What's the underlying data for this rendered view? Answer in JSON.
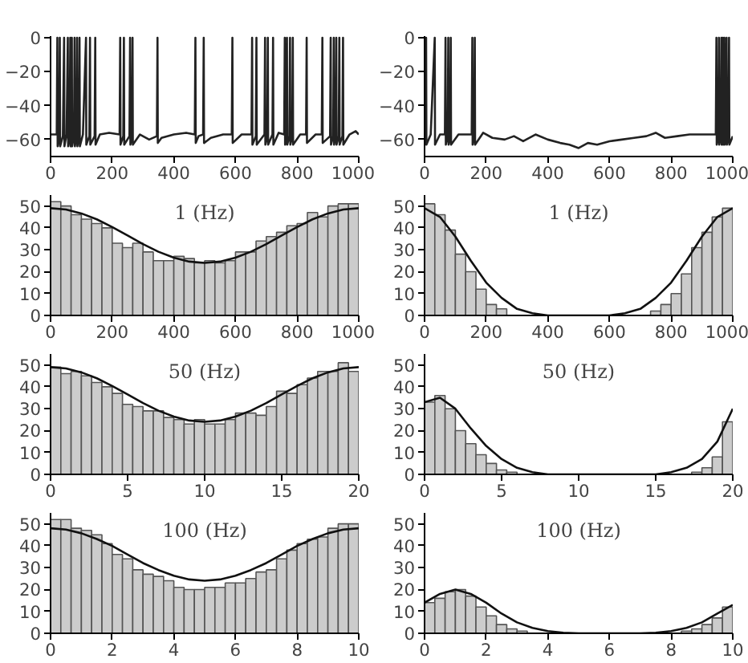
{
  "chart_data": [
    {
      "type": "line",
      "color": "#222222",
      "xlim": [
        0,
        1000
      ],
      "ylim": [
        -70,
        1
      ],
      "xticks": [
        0,
        200,
        400,
        600,
        800,
        1000
      ],
      "yticks": [
        0,
        -20,
        -40,
        -60
      ],
      "x": [
        0,
        20,
        22,
        23,
        28,
        30,
        31,
        40,
        44,
        45,
        52,
        56,
        57,
        62,
        64,
        65,
        67,
        69,
        70,
        76,
        78,
        79,
        84,
        86,
        87,
        92,
        94,
        95,
        105,
        115,
        116,
        126,
        128,
        129,
        143,
        145,
        146,
        160,
        190,
        224,
        226,
        227,
        236,
        238,
        239,
        256,
        258,
        259,
        264,
        266,
        267,
        290,
        320,
        345,
        347,
        348,
        360,
        400,
        440,
        468,
        470,
        471,
        480,
        495,
        497,
        498,
        520,
        560,
        588,
        590,
        591,
        620,
        652,
        654,
        655,
        666,
        668,
        669,
        694,
        696,
        697,
        703,
        705,
        706,
        720,
        722,
        723,
        740,
        758,
        760,
        761,
        765,
        767,
        768,
        775,
        777,
        778,
        784,
        786,
        787,
        810,
        829,
        831,
        832,
        860,
        880,
        882,
        883,
        907,
        909,
        910,
        917,
        919,
        920,
        925,
        927,
        928,
        935,
        937,
        938,
        947,
        949,
        950,
        970,
        990,
        1000
      ],
      "values": [
        -57,
        -57,
        0,
        -64,
        -58,
        0,
        -64,
        -58,
        0,
        -64,
        -57,
        0,
        -64,
        -58,
        0,
        -64,
        -58,
        0,
        -64,
        -58,
        0,
        -64,
        -58,
        0,
        -64,
        -58,
        0,
        -64,
        -57,
        0,
        -63,
        -58,
        0,
        -63,
        -58,
        0,
        -63,
        -57,
        -56,
        -57,
        0,
        -63,
        -58,
        0,
        -63,
        -58,
        0,
        -63,
        -58,
        0,
        -63,
        -57,
        -60,
        -58,
        0,
        -62,
        -59,
        -57,
        -56,
        -57,
        0,
        -62,
        -58,
        -57,
        0,
        -62,
        -59,
        -57,
        -57,
        0,
        -62,
        -57,
        -57,
        0,
        -63,
        -58,
        0,
        -63,
        -57,
        0,
        -63,
        -58,
        0,
        -63,
        -57,
        0,
        -63,
        -56,
        -57,
        0,
        -63,
        -58,
        0,
        -63,
        -58,
        0,
        -63,
        -58,
        0,
        -63,
        -57,
        -57,
        0,
        -62,
        -57,
        -57,
        0,
        -62,
        -58,
        0,
        -63,
        -58,
        0,
        -63,
        -58,
        0,
        -63,
        -58,
        0,
        -63,
        -58,
        0,
        -63,
        -57,
        -55,
        -57
      ]
    },
    {
      "type": "line",
      "color": "#222222",
      "xlim": [
        0,
        1000
      ],
      "ylim": [
        -70,
        1
      ],
      "xticks": [
        0,
        200,
        400,
        600,
        800,
        1000
      ],
      "yticks": [
        0,
        -20,
        -40,
        -60
      ],
      "x": [
        0,
        1,
        3,
        5,
        6,
        20,
        33,
        34,
        50,
        66,
        68,
        69,
        75,
        77,
        78,
        83,
        85,
        86,
        110,
        153,
        155,
        156,
        161,
        163,
        164,
        190,
        220,
        260,
        290,
        320,
        360,
        400,
        440,
        470,
        500,
        530,
        560,
        600,
        640,
        680,
        720,
        750,
        780,
        820,
        860,
        900,
        945,
        947,
        948,
        953,
        955,
        956,
        961,
        963,
        964,
        966,
        968,
        969,
        971,
        973,
        974,
        978,
        980,
        981,
        986,
        988,
        989,
        1000
      ],
      "values": [
        0,
        -63,
        -58,
        0,
        -63,
        -57,
        0,
        -63,
        -57,
        -57,
        0,
        -63,
        -58,
        0,
        -63,
        -58,
        0,
        -63,
        -57,
        -57,
        0,
        -63,
        -58,
        0,
        -63,
        -56,
        -59,
        -60,
        -58,
        -61,
        -57,
        -60,
        -62,
        -63,
        -65,
        -62,
        -63,
        -61,
        -60,
        -59,
        -58,
        -56,
        -59,
        -58,
        -57,
        -57,
        -57,
        0,
        -63,
        -58,
        0,
        -63,
        -58,
        0,
        -63,
        -58,
        0,
        -63,
        -58,
        0,
        -63,
        -58,
        0,
        -63,
        -58,
        0,
        -63,
        -58
      ]
    },
    {
      "type": "histogram",
      "annotations": [
        "1 (Hz)"
      ],
      "xlim": [
        0,
        1000
      ],
      "ylim": [
        0,
        55
      ],
      "xticks": [
        0,
        200,
        400,
        600,
        800,
        1000
      ],
      "yticks": [
        0,
        10,
        20,
        30,
        40,
        50
      ],
      "series": [
        {
          "type": "histogram",
          "color": "#cccccc",
          "bins": [
            0,
            33.3,
            66.7,
            100,
            133.3,
            166.7,
            200,
            233.3,
            266.7,
            300,
            333.3,
            366.7,
            400,
            433.3,
            466.7,
            500,
            533.3,
            566.7,
            600,
            633.3,
            666.7,
            700,
            733.3,
            766.7,
            800,
            833.3,
            866.7,
            900,
            933.3,
            966.7,
            1000
          ],
          "values": [
            52,
            50,
            46,
            44,
            42,
            40,
            33,
            31,
            33,
            29,
            25,
            25,
            27,
            26,
            24,
            25,
            24,
            25,
            29,
            29,
            34,
            36,
            38,
            41,
            42,
            47,
            45,
            50,
            51,
            51
          ]
        },
        {
          "type": "line",
          "color": "#111111",
          "x": [
            0,
            50,
            100,
            150,
            200,
            250,
            300,
            350,
            400,
            450,
            500,
            550,
            600,
            650,
            700,
            750,
            800,
            850,
            900,
            950,
            1000
          ],
          "values": [
            49,
            48.4,
            46.6,
            43.9,
            40.4,
            36.5,
            32.6,
            29.1,
            26.4,
            24.6,
            24,
            24.6,
            26.4,
            29.1,
            32.6,
            36.5,
            40.4,
            43.9,
            46.6,
            48.4,
            49
          ]
        }
      ]
    },
    {
      "type": "histogram",
      "annotations": [
        "1 (Hz)"
      ],
      "xlim": [
        0,
        1000
      ],
      "ylim": [
        0,
        55
      ],
      "xticks": [
        0,
        200,
        400,
        600,
        800,
        1000
      ],
      "yticks": [
        0,
        10,
        20,
        30,
        40,
        50
      ],
      "series": [
        {
          "type": "histogram",
          "color": "#cccccc",
          "bins": [
            0,
            33.3,
            66.7,
            100,
            133.3,
            166.7,
            200,
            233.3,
            266.7,
            300,
            333.3,
            366.7,
            400,
            433.3,
            466.7,
            500,
            533.3,
            566.7,
            600,
            633.3,
            666.7,
            700,
            733.3,
            766.7,
            800,
            833.3,
            866.7,
            900,
            933.3,
            966.7,
            1000
          ],
          "values": [
            51,
            46,
            39,
            28,
            20,
            12,
            5,
            3,
            0,
            0,
            0,
            0,
            0,
            0,
            0,
            0,
            0,
            0,
            0,
            0,
            0,
            0,
            2,
            5,
            10,
            19,
            31,
            38,
            45,
            49
          ]
        },
        {
          "type": "line",
          "color": "#111111",
          "x": [
            0,
            50,
            100,
            150,
            200,
            250,
            300,
            350,
            400,
            450,
            500,
            550,
            600,
            650,
            700,
            750,
            800,
            850,
            900,
            950,
            1000
          ],
          "values": [
            49,
            45,
            36,
            25,
            15,
            8,
            3,
            1,
            0,
            0,
            0,
            0,
            0,
            1,
            3,
            8,
            15,
            25,
            36,
            45,
            49
          ]
        }
      ]
    },
    {
      "type": "histogram",
      "annotations": [
        "50 (Hz)"
      ],
      "xlim": [
        0,
        20
      ],
      "ylim": [
        0,
        55
      ],
      "xticks": [
        0,
        5,
        10,
        15,
        20
      ],
      "yticks": [
        0,
        10,
        20,
        30,
        40,
        50
      ],
      "series": [
        {
          "type": "histogram",
          "color": "#cccccc",
          "bins": [
            0,
            0.667,
            1.333,
            2,
            2.667,
            3.333,
            4,
            4.667,
            5.333,
            6,
            6.667,
            7.333,
            8,
            8.667,
            9.333,
            10,
            10.667,
            11.333,
            12,
            12.667,
            13.333,
            14,
            14.667,
            15.333,
            16,
            16.667,
            17.333,
            18,
            18.667,
            19.333,
            20
          ],
          "values": [
            49,
            46,
            47,
            45,
            42,
            40,
            37,
            32,
            31,
            29,
            29,
            26,
            25,
            23,
            25,
            23,
            23,
            25,
            28,
            28,
            27,
            31,
            38,
            37,
            41,
            44,
            47,
            47,
            51,
            47
          ]
        },
        {
          "type": "line",
          "color": "#111111",
          "x": [
            0,
            1,
            2,
            3,
            4,
            5,
            6,
            7,
            8,
            9,
            10,
            11,
            12,
            13,
            14,
            15,
            16,
            17,
            18,
            19,
            20
          ],
          "values": [
            49,
            48.4,
            46.6,
            43.9,
            40.4,
            36.5,
            32.6,
            29.1,
            26.4,
            24.6,
            24,
            24.6,
            26.4,
            29.1,
            32.6,
            36.5,
            40.4,
            43.9,
            46.6,
            48.4,
            49
          ]
        }
      ]
    },
    {
      "type": "histogram",
      "annotations": [
        "50 (Hz)"
      ],
      "xlim": [
        0,
        20
      ],
      "ylim": [
        0,
        55
      ],
      "xticks": [
        0,
        5,
        10,
        15,
        20
      ],
      "yticks": [
        0,
        10,
        20,
        30,
        40,
        50
      ],
      "series": [
        {
          "type": "histogram",
          "color": "#cccccc",
          "bins": [
            0,
            0.667,
            1.333,
            2,
            2.667,
            3.333,
            4,
            4.667,
            5.333,
            6,
            6.667,
            7.333,
            8,
            8.667,
            9.333,
            10,
            10.667,
            11.333,
            12,
            12.667,
            13.333,
            14,
            14.667,
            15.333,
            16,
            16.667,
            17.333,
            18,
            18.667,
            19.333,
            20
          ],
          "values": [
            33,
            36,
            30,
            20,
            14,
            9,
            5,
            2,
            1,
            0,
            0,
            0,
            0,
            0,
            0,
            0,
            0,
            0,
            0,
            0,
            0,
            0,
            0,
            0,
            0,
            0,
            1,
            3,
            8,
            24
          ]
        },
        {
          "type": "line",
          "color": "#111111",
          "x": [
            0,
            1,
            2,
            3,
            4,
            5,
            6,
            7,
            8,
            9,
            10,
            11,
            12,
            13,
            14,
            15,
            16,
            17,
            18,
            19,
            20
          ],
          "values": [
            33,
            35,
            30,
            21,
            13,
            7,
            3,
            1,
            0,
            0,
            0,
            0,
            0,
            0,
            0,
            0,
            1,
            3,
            7,
            15,
            30
          ]
        }
      ]
    },
    {
      "type": "histogram",
      "annotations": [
        "100 (Hz)"
      ],
      "xlim": [
        0,
        10
      ],
      "ylim": [
        0,
        55
      ],
      "xticks": [
        0,
        2,
        4,
        6,
        8,
        10
      ],
      "yticks": [
        0,
        10,
        20,
        30,
        40,
        50
      ],
      "series": [
        {
          "type": "histogram",
          "color": "#cccccc",
          "bins": [
            0,
            0.333,
            0.667,
            1,
            1.333,
            1.667,
            2,
            2.333,
            2.667,
            3,
            3.333,
            3.667,
            4,
            4.333,
            4.667,
            5,
            5.333,
            5.667,
            6,
            6.333,
            6.667,
            7,
            7.333,
            7.667,
            8,
            8.333,
            8.667,
            9,
            9.333,
            9.667,
            10
          ],
          "values": [
            52,
            52,
            48,
            47,
            45,
            41,
            36,
            34,
            29,
            27,
            26,
            24,
            21,
            20,
            20,
            21,
            21,
            23,
            23,
            25,
            28,
            29,
            34,
            38,
            41,
            43,
            44,
            48,
            50,
            50
          ]
        },
        {
          "type": "line",
          "color": "#111111",
          "x": [
            0,
            0.5,
            1,
            1.5,
            2,
            2.5,
            3,
            3.5,
            4,
            4.5,
            5,
            5.5,
            6,
            6.5,
            7,
            7.5,
            8,
            8.5,
            9,
            9.5,
            10
          ],
          "values": [
            48,
            47.4,
            45.7,
            43.1,
            39.9,
            36,
            32.1,
            28.9,
            26.3,
            24.6,
            24,
            24.6,
            26.3,
            28.9,
            32.1,
            36,
            39.9,
            43.1,
            45.7,
            47.4,
            48
          ]
        }
      ]
    },
    {
      "type": "histogram",
      "annotations": [
        "100 (Hz)"
      ],
      "xlim": [
        0,
        10
      ],
      "ylim": [
        0,
        55
      ],
      "xticks": [
        0,
        2,
        4,
        6,
        8,
        10
      ],
      "yticks": [
        0,
        10,
        20,
        30,
        40,
        50
      ],
      "series": [
        {
          "type": "histogram",
          "color": "#cccccc",
          "bins": [
            0,
            0.333,
            0.667,
            1,
            1.333,
            1.667,
            2,
            2.333,
            2.667,
            3,
            3.333,
            3.667,
            4,
            4.333,
            4.667,
            5,
            5.333,
            5.667,
            6,
            6.333,
            6.667,
            7,
            7.333,
            7.667,
            8,
            8.333,
            8.667,
            9,
            9.333,
            9.667,
            10
          ],
          "values": [
            14,
            16,
            19,
            20,
            17,
            12,
            8,
            4,
            2,
            1,
            0,
            0,
            0,
            0,
            0,
            0,
            0,
            0,
            0,
            0,
            0,
            0,
            0,
            0,
            0,
            1,
            2,
            4,
            7,
            12
          ]
        },
        {
          "type": "line",
          "color": "#111111",
          "x": [
            0,
            0.5,
            1,
            1.5,
            2,
            2.5,
            3,
            3.5,
            4,
            4.5,
            5,
            5.5,
            6,
            6.5,
            7,
            7.5,
            8,
            8.5,
            9,
            9.5,
            10
          ],
          "values": [
            14,
            18,
            20,
            18,
            14,
            9,
            5,
            2.5,
            1,
            0.3,
            0,
            0,
            0,
            0,
            0,
            0.3,
            1,
            2.5,
            5,
            9,
            13
          ]
        }
      ]
    }
  ]
}
